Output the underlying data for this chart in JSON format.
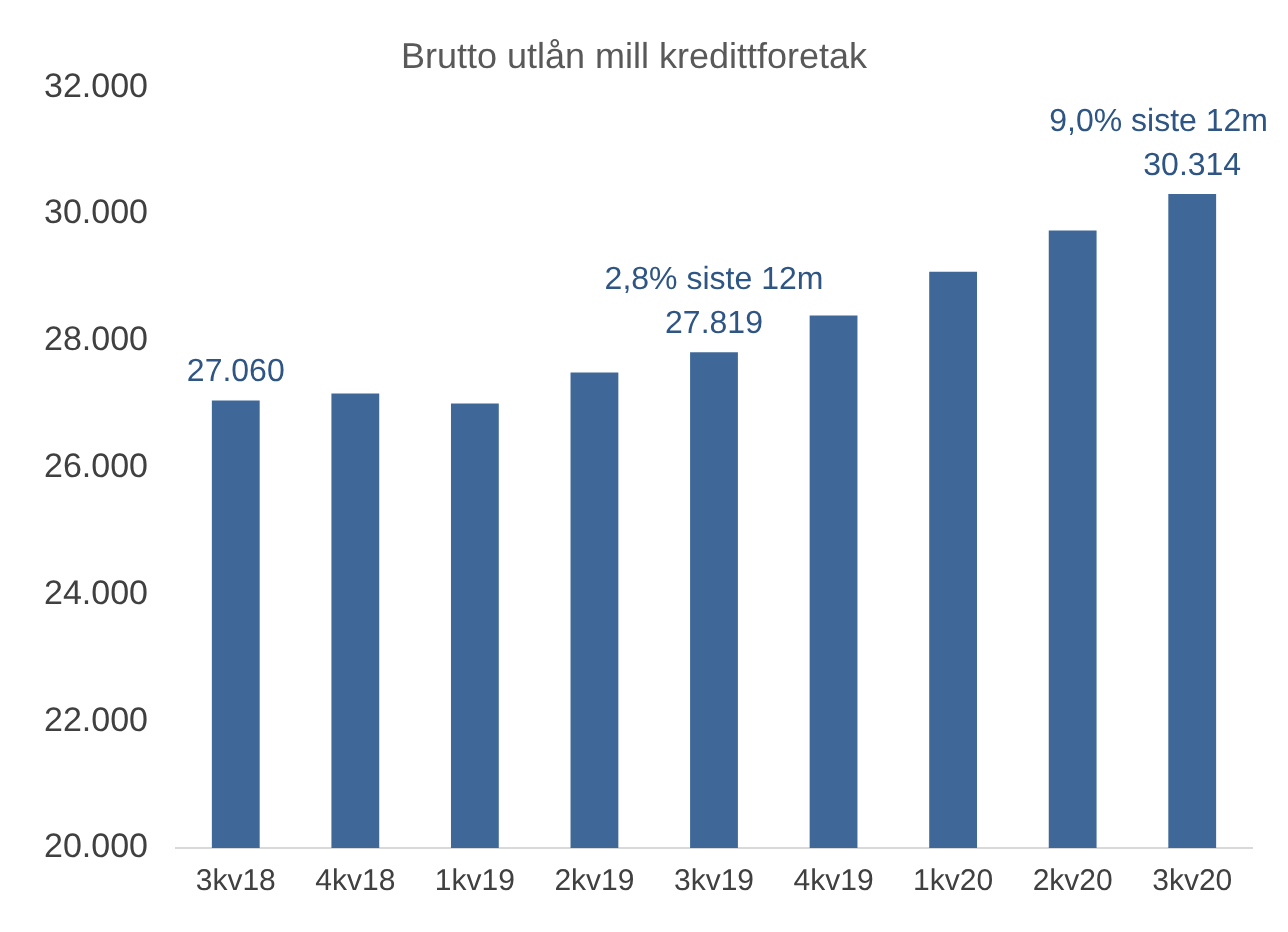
{
  "chart_data": {
    "type": "bar",
    "title": "Brutto utlån mill kredittforetak",
    "categories": [
      "3kv18",
      "4kv18",
      "1kv19",
      "2kv19",
      "3kv19",
      "4kv19",
      "1kv20",
      "2kv20",
      "3kv20"
    ],
    "values": [
      27060,
      27170,
      27010,
      27500,
      27819,
      28400,
      29090,
      29740,
      30314
    ],
    "value_labels": [
      "27.060",
      null,
      null,
      null,
      "27.819",
      null,
      null,
      null,
      "30.314"
    ],
    "annotations": [
      {
        "text": "2,8% siste 12m",
        "x": "3kv19",
        "y": 27819
      },
      {
        "text": "9,0% siste 12m",
        "x": "3kv20",
        "y": 30314
      }
    ],
    "color": "#3f6899",
    "ylim": [
      20000,
      32000
    ],
    "yticks": [
      {
        "value": 20000,
        "label": "20.000"
      },
      {
        "value": 22000,
        "label": "22.000"
      },
      {
        "value": 24000,
        "label": "24.000"
      },
      {
        "value": 26000,
        "label": "26.000"
      },
      {
        "value": 28000,
        "label": "28.000"
      },
      {
        "value": 30000,
        "label": "30.000"
      },
      {
        "value": 32000,
        "label": "32.000"
      }
    ],
    "grid": false,
    "legend": false
  }
}
